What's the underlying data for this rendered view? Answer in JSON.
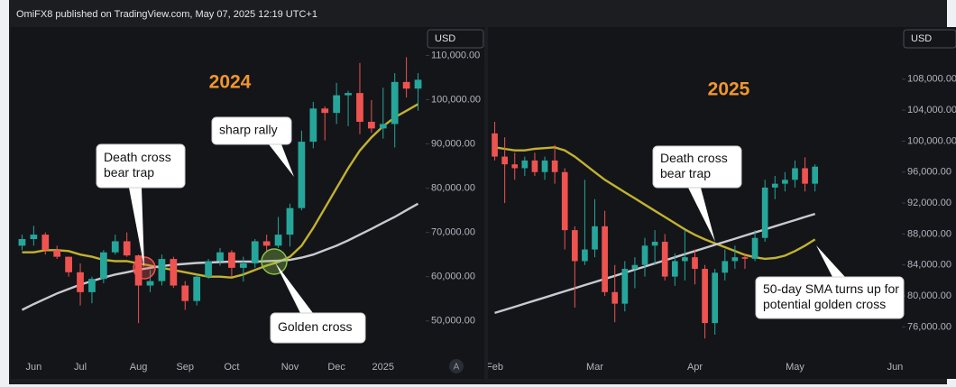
{
  "header": {
    "text": "OmiFX8 published on TradingView.com, May 07, 2025 12:19 UTC+1"
  },
  "chart_data": [
    {
      "type": "candlestick",
      "title": "2024",
      "axis_label": "USD",
      "auto_label": "A",
      "up_color": "#26a69a",
      "down_color": "#ef5350",
      "categories": [
        null,
        "Jun",
        null,
        null,
        null,
        "Jul",
        null,
        null,
        null,
        null,
        "Aug",
        null,
        null,
        null,
        "Sep",
        null,
        null,
        null,
        "Oct",
        null,
        null,
        null,
        null,
        "Nov",
        null,
        null,
        null,
        "Dec",
        null,
        null,
        null,
        "2025",
        null,
        null,
        null
      ],
      "open": [
        67000,
        68500,
        69500,
        66000,
        64500,
        61000,
        56500,
        59500,
        65500,
        68000,
        64800,
        58000,
        59000,
        64000,
        58000,
        54500,
        60000,
        63500,
        65500,
        62000,
        63000,
        68000,
        67000,
        69500,
        75500,
        90500,
        98000,
        97000,
        101000,
        101500,
        95000,
        93500,
        94500,
        104000,
        102500
      ],
      "high": [
        69500,
        71500,
        70000,
        67000,
        64500,
        63000,
        60000,
        66000,
        69500,
        70000,
        65000,
        61500,
        65000,
        64500,
        59000,
        60500,
        64000,
        66500,
        66000,
        64500,
        68500,
        69500,
        73500,
        76500,
        93000,
        99500,
        98500,
        103800,
        102000,
        108300,
        99900,
        102700,
        106000,
        109600,
        106000
      ],
      "low": [
        66000,
        67000,
        65000,
        64000,
        60000,
        53500,
        54000,
        58500,
        65000,
        64500,
        49500,
        56500,
        58000,
        57500,
        52500,
        53500,
        59500,
        62500,
        60000,
        58900,
        62000,
        65500,
        66500,
        66800,
        75000,
        89000,
        90800,
        94500,
        94000,
        92200,
        92500,
        91200,
        89200,
        100500,
        97500
      ],
      "close": [
        68500,
        69500,
        66000,
        64500,
        61000,
        56500,
        59500,
        65500,
        68000,
        64800,
        58000,
        59000,
        64000,
        58000,
        54500,
        60000,
        63500,
        65500,
        62000,
        63000,
        68000,
        67000,
        69500,
        75500,
        90500,
        98000,
        97000,
        101000,
        101500,
        95000,
        93500,
        94500,
        104000,
        102500,
        104500
      ],
      "lines": [
        {
          "color": "#c2b22e",
          "values": [
            65500,
            65500,
            66000,
            66000,
            65800,
            65000,
            64500,
            63800,
            63500,
            63500,
            63000,
            62500,
            62000,
            61500,
            61000,
            60500,
            60000,
            60000,
            59800,
            60500,
            61500,
            62500,
            63300,
            64500,
            67000,
            71000,
            75500,
            80000,
            84500,
            88500,
            91500,
            94000,
            96000,
            97500,
            99000
          ]
        },
        {
          "color": "#c9cad0",
          "values": [
            52500,
            53800,
            55000,
            56200,
            57200,
            58200,
            59000,
            59800,
            60500,
            61000,
            61600,
            62000,
            62400,
            62700,
            62900,
            63100,
            63200,
            63300,
            63400,
            63400,
            63400,
            63500,
            63600,
            63800,
            64300,
            65000,
            66000,
            67000,
            68200,
            69500,
            70800,
            72200,
            73500,
            75000,
            76500
          ]
        }
      ],
      "ylim": [
        42000,
        116000
      ],
      "yticks": [
        {
          "value": 50000,
          "label": "50,000.00"
        },
        {
          "value": 60000,
          "label": "60,000.00"
        },
        {
          "value": 70000,
          "label": "70,000.00"
        },
        {
          "value": 80000,
          "label": "80,000.00"
        },
        {
          "value": 90000,
          "label": "90,000.00"
        },
        {
          "value": 100000,
          "label": "100,000.00"
        },
        {
          "value": 110000,
          "label": "110,000.00"
        }
      ],
      "annotations": [
        {
          "lines": [
            "Death cross",
            "bear trap"
          ]
        },
        {
          "lines": [
            "sharp rally"
          ]
        },
        {
          "lines": [
            "Golden cross"
          ]
        }
      ]
    },
    {
      "type": "candlestick",
      "title": "2025",
      "axis_label": "USD",
      "up_color": "#26a69a",
      "down_color": "#ef5350",
      "categories": [
        "Feb",
        null,
        null,
        null,
        null,
        null,
        null,
        null,
        null,
        null,
        "Mar",
        null,
        null,
        null,
        null,
        null,
        null,
        null,
        null,
        null,
        "Apr",
        null,
        null,
        null,
        null,
        null,
        null,
        null,
        null,
        null,
        "May",
        null,
        null,
        null,
        null,
        null,
        null,
        null,
        null,
        null,
        "Jun"
      ],
      "open": [
        101000,
        98000,
        97000,
        96500,
        97500,
        96000,
        97500,
        96000,
        88500,
        84500,
        86000,
        89000,
        80500,
        79000,
        83500,
        84000,
        86500,
        87000,
        82500,
        84500,
        85000,
        83500,
        76500,
        83000,
        84500,
        85000,
        84800,
        87500,
        94000,
        94500,
        95000,
        96500,
        94500,
        null,
        null,
        null,
        null,
        null,
        null,
        null,
        null
      ],
      "high": [
        102500,
        100500,
        98500,
        98000,
        98500,
        98000,
        99500,
        96500,
        89000,
        95000,
        92500,
        91000,
        84000,
        84500,
        85000,
        87500,
        88500,
        88000,
        85500,
        88500,
        86000,
        84000,
        83500,
        86000,
        86500,
        85500,
        88500,
        95000,
        95500,
        96000,
        97500,
        97900,
        97000,
        null,
        null,
        null,
        null,
        null,
        null,
        null,
        null
      ],
      "low": [
        97500,
        92000,
        95000,
        95500,
        95500,
        95000,
        94500,
        86000,
        78500,
        84000,
        85000,
        80000,
        76600,
        78000,
        81000,
        82500,
        84000,
        82000,
        81300,
        82000,
        81500,
        74500,
        75000,
        82000,
        83500,
        83500,
        84500,
        87000,
        92500,
        93500,
        94000,
        93500,
        93500,
        null,
        null,
        null,
        null,
        null,
        null,
        null,
        null
      ],
      "close": [
        98000,
        97000,
        96500,
        97500,
        96000,
        97500,
        96000,
        88500,
        84500,
        86000,
        89000,
        80500,
        79000,
        83500,
        84000,
        86500,
        87000,
        82500,
        84500,
        85000,
        83500,
        76500,
        83000,
        84500,
        85000,
        84800,
        87500,
        94000,
        94500,
        95000,
        96500,
        94500,
        96700,
        null,
        null,
        null,
        null,
        null,
        null,
        null,
        null
      ],
      "lines": [
        {
          "color": "#c2b22e",
          "values": [
            99200,
            99000,
            98800,
            98800,
            99000,
            99100,
            99200,
            98800,
            98000,
            97000,
            96000,
            95000,
            94200,
            93400,
            92600,
            91800,
            91000,
            90200,
            89400,
            88600,
            87900,
            87300,
            86800,
            86300,
            85800,
            85300,
            85000,
            84800,
            84900,
            85200,
            85800,
            86500,
            87300,
            null,
            null,
            null,
            null,
            null,
            null,
            null,
            null
          ]
        },
        {
          "color": "#c9cad0",
          "values": [
            77800,
            78200,
            78600,
            79000,
            79400,
            79800,
            80200,
            80600,
            81000,
            81400,
            81800,
            82200,
            82600,
            83000,
            83400,
            83800,
            84200,
            84600,
            85000,
            85400,
            85800,
            86200,
            86600,
            87000,
            87400,
            87800,
            88200,
            88600,
            89000,
            89400,
            89800,
            90200,
            90600,
            null,
            null,
            null,
            null,
            null,
            null,
            null,
            null
          ]
        }
      ],
      "ylim": [
        72200,
        114500
      ],
      "yticks": [
        {
          "value": 76000,
          "label": "76,000.00"
        },
        {
          "value": 80000,
          "label": "80,000.00"
        },
        {
          "value": 84000,
          "label": "84,000.00"
        },
        {
          "value": 88000,
          "label": "88,000.00"
        },
        {
          "value": 92000,
          "label": "92,000.00"
        },
        {
          "value": 96000,
          "label": "96,000.00"
        },
        {
          "value": 100000,
          "label": "100,000.00"
        },
        {
          "value": 104000,
          "label": "104,000.00"
        },
        {
          "value": 108000,
          "label": "108,000.00"
        }
      ],
      "annotations": [
        {
          "lines": [
            "Death cross",
            "bear trap"
          ]
        },
        {
          "lines": [
            "50-day SMA turns up for",
            "potential golden cross"
          ]
        }
      ]
    }
  ]
}
